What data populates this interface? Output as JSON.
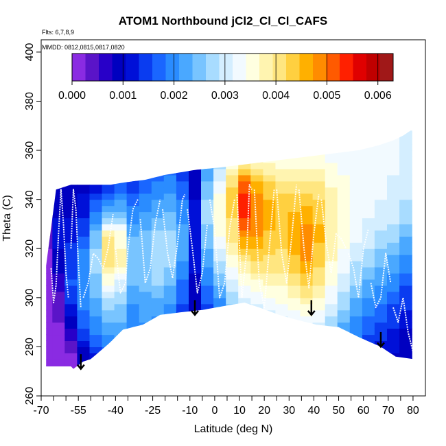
{
  "chart_data": {
    "type": "heatmap",
    "title": "ATOM1 Northbound jCl2_Cl_Cl_CAFS",
    "flights_note": "Flts: 6,7,8,9",
    "dates_note": "MMDD: 0812,0815,0817,0820",
    "xlabel": "Latitude (deg N)",
    "ylabel": "Theta (C)",
    "xlim": [
      -70,
      85
    ],
    "ylim": [
      260,
      405
    ],
    "x_ticks": [
      -70,
      -55,
      -40,
      -25,
      -10,
      0,
      10,
      20,
      30,
      40,
      50,
      60,
      70,
      80
    ],
    "x_tick_labels": [
      "-70",
      "-55",
      "-40",
      "-25",
      "-10",
      "0",
      "10",
      "20",
      "30",
      "40",
      "50",
      "60",
      "70",
      "80"
    ],
    "x_minor_ticks": [
      -65,
      -60,
      -50,
      -45,
      -35,
      -30,
      -20,
      -15,
      -5,
      5,
      15,
      25,
      35,
      45,
      55,
      65,
      75
    ],
    "y_ticks": [
      260,
      280,
      300,
      320,
      340,
      360,
      380,
      400
    ],
    "y_tick_labels": [
      "260",
      "280",
      "300",
      "320",
      "340",
      "360",
      "380",
      "400"
    ],
    "colorbar": {
      "min": 0.0,
      "max": 0.0063,
      "ticks": [
        0.0,
        0.001,
        0.002,
        0.003,
        0.004,
        0.005,
        0.006
      ],
      "tick_labels": [
        "0.000",
        "0.001",
        "0.002",
        "0.003",
        "0.004",
        "0.005",
        "0.006"
      ],
      "colors": [
        "#8a2be2",
        "#5a14c8",
        "#2800c8",
        "#0000c0",
        "#0010d8",
        "#0a3cf0",
        "#1a66ff",
        "#2a8cff",
        "#4aa8ff",
        "#78c4ff",
        "#a8dcff",
        "#d4eeff",
        "#f2faff",
        "#ffffe0",
        "#fff4b0",
        "#ffe680",
        "#ffd040",
        "#ffb000",
        "#ff8c00",
        "#ff5a00",
        "#ff2000",
        "#e00000",
        "#c00000",
        "#a01818"
      ]
    },
    "floor_boundary": {
      "lat": [
        -57,
        -53,
        -50,
        -43,
        -37,
        -29,
        -22,
        -14,
        -5,
        6,
        12,
        18,
        26,
        33,
        41,
        50,
        58,
        67,
        73,
        80
      ],
      "theta": [
        271,
        274,
        275,
        281,
        287,
        289,
        293,
        294,
        295,
        297,
        298,
        296,
        293,
        291,
        289,
        288,
        284,
        280,
        276,
        275
      ]
    },
    "top_boundary": {
      "lat": [
        -68,
        -64,
        -58,
        -50,
        -42,
        -36,
        -28,
        -20,
        -14,
        -8,
        2,
        10,
        18,
        26,
        34,
        42,
        50,
        58,
        66,
        72,
        76,
        79
      ],
      "theta": [
        313,
        344,
        346,
        346,
        346,
        347,
        348,
        350,
        351,
        352,
        353,
        354,
        355,
        356,
        357,
        358,
        359,
        360,
        362,
        364,
        366,
        368
      ]
    },
    "columns": [
      {
        "lat": -68,
        "values": [
          0.0001,
          0.0001,
          0.0001,
          0.0002,
          0.0002,
          0.0003,
          0.0004,
          0.0002,
          0.0001,
          0.0001
        ]
      },
      {
        "lat": -63,
        "values": [
          0.0001,
          0.0002,
          0.0003,
          0.0006,
          0.0009,
          0.0012,
          0.001,
          0.0008,
          0.0005,
          0.0003
        ]
      },
      {
        "lat": -58,
        "values": [
          0.0002,
          0.0006,
          0.0012,
          0.0016,
          0.0015,
          0.0012,
          0.001,
          0.0009,
          0.0007,
          0.0005
        ]
      },
      {
        "lat": -53,
        "values": [
          0.0008,
          0.0014,
          0.0019,
          0.0021,
          0.002,
          0.0016,
          0.0012,
          0.001,
          0.0008,
          0.0007
        ]
      },
      {
        "lat": -48,
        "values": [
          0.0012,
          0.0018,
          0.0022,
          0.0025,
          0.0028,
          0.0025,
          0.0018,
          0.0012,
          0.0009,
          0.0008
        ]
      },
      {
        "lat": -43,
        "values": [
          0.0016,
          0.0021,
          0.0026,
          0.0033,
          0.0042,
          0.004,
          0.0022,
          0.0014,
          0.001,
          0.0008
        ]
      },
      {
        "lat": -38,
        "values": [
          0.0018,
          0.0022,
          0.0025,
          0.003,
          0.0038,
          0.0036,
          0.0024,
          0.0017,
          0.0012,
          0.0009
        ]
      },
      {
        "lat": -33,
        "values": [
          0.0016,
          0.0018,
          0.002,
          0.0024,
          0.0026,
          0.0024,
          0.0019,
          0.0015,
          0.0012,
          0.001
        ]
      },
      {
        "lat": -28,
        "values": [
          0.0017,
          0.002,
          0.0022,
          0.0024,
          0.0026,
          0.0025,
          0.0021,
          0.0017,
          0.0014,
          0.0011
        ]
      },
      {
        "lat": -23,
        "values": [
          0.0016,
          0.0019,
          0.0022,
          0.0026,
          0.0028,
          0.0027,
          0.0023,
          0.0019,
          0.0016,
          0.0013
        ]
      },
      {
        "lat": -18,
        "values": [
          0.0014,
          0.0017,
          0.002,
          0.0024,
          0.0027,
          0.0027,
          0.0024,
          0.002,
          0.0017,
          0.0014
        ]
      },
      {
        "lat": -13,
        "values": [
          0.001,
          0.0012,
          0.0015,
          0.0018,
          0.0021,
          0.0022,
          0.002,
          0.0016,
          0.0014,
          0.0012
        ]
      },
      {
        "lat": -8,
        "values": [
          0.0006,
          0.0008,
          0.0009,
          0.001,
          0.0011,
          0.0012,
          0.0011,
          0.001,
          0.0009,
          0.0008
        ]
      },
      {
        "lat": -3,
        "values": [
          0.001,
          0.0012,
          0.0015,
          0.0018,
          0.0022,
          0.0025,
          0.0027,
          0.0025,
          0.0021,
          0.0016
        ]
      },
      {
        "lat": 2,
        "values": [
          0.0012,
          0.0015,
          0.0019,
          0.0024,
          0.0029,
          0.0034,
          0.0036,
          0.0033,
          0.0028,
          0.0022
        ]
      },
      {
        "lat": 7,
        "values": [
          0.0015,
          0.0019,
          0.0024,
          0.003,
          0.0035,
          0.004,
          0.0043,
          0.0042,
          0.0036,
          0.0028
        ]
      },
      {
        "lat": 12,
        "values": [
          0.0018,
          0.0023,
          0.0028,
          0.0034,
          0.004,
          0.0048,
          0.0055,
          0.0052,
          0.004,
          0.003
        ]
      },
      {
        "lat": 17,
        "values": [
          0.002,
          0.0025,
          0.003,
          0.0036,
          0.0042,
          0.0047,
          0.005,
          0.0046,
          0.0038,
          0.003
        ]
      },
      {
        "lat": 22,
        "values": [
          0.0022,
          0.0027,
          0.0032,
          0.0037,
          0.0041,
          0.0044,
          0.0046,
          0.0043,
          0.0037,
          0.0031
        ]
      },
      {
        "lat": 27,
        "values": [
          0.0023,
          0.0028,
          0.0033,
          0.0037,
          0.0041,
          0.0043,
          0.0044,
          0.0041,
          0.0036,
          0.0031
        ]
      },
      {
        "lat": 32,
        "values": [
          0.0024,
          0.0029,
          0.0034,
          0.0039,
          0.0044,
          0.0046,
          0.0045,
          0.0041,
          0.0036,
          0.0031
        ]
      },
      {
        "lat": 37,
        "values": [
          0.0025,
          0.003,
          0.0036,
          0.0042,
          0.0047,
          0.0049,
          0.0046,
          0.0041,
          0.0036,
          0.0032
        ]
      },
      {
        "lat": 42,
        "values": [
          0.0024,
          0.0029,
          0.0034,
          0.0039,
          0.0043,
          0.0045,
          0.0044,
          0.004,
          0.0036,
          0.0032
        ]
      },
      {
        "lat": 47,
        "values": [
          0.0022,
          0.0026,
          0.003,
          0.0034,
          0.0037,
          0.0039,
          0.0039,
          0.0037,
          0.0034,
          0.0031
        ]
      },
      {
        "lat": 52,
        "values": [
          0.0019,
          0.0022,
          0.0026,
          0.003,
          0.0033,
          0.0035,
          0.0036,
          0.0035,
          0.0033,
          0.0031
        ]
      },
      {
        "lat": 57,
        "values": [
          0.0016,
          0.0019,
          0.0022,
          0.0026,
          0.0029,
          0.0032,
          0.0034,
          0.0034,
          0.0033,
          0.0031
        ]
      },
      {
        "lat": 62,
        "values": [
          0.0013,
          0.0016,
          0.0019,
          0.0023,
          0.0027,
          0.003,
          0.0032,
          0.0033,
          0.0033,
          0.0032
        ]
      },
      {
        "lat": 67,
        "values": [
          0.0011,
          0.0014,
          0.0017,
          0.0021,
          0.0025,
          0.0028,
          0.0031,
          0.0032,
          0.0033,
          0.0033
        ]
      },
      {
        "lat": 72,
        "values": [
          0.001,
          0.0012,
          0.0015,
          0.0019,
          0.0023,
          0.0027,
          0.003,
          0.0031,
          0.0032,
          0.0032
        ]
      },
      {
        "lat": 77,
        "values": [
          0.0008,
          0.001,
          0.0013,
          0.0016,
          0.002,
          0.0024,
          0.0028,
          0.003,
          0.0031,
          0.0031
        ]
      }
    ],
    "flight_tracks": [
      {
        "lat": [
          -66,
          -65,
          -64,
          -63,
          -62,
          -61,
          -60,
          -59
        ],
        "theta": [
          312,
          298,
          305,
          326,
          344,
          330,
          310,
          300
        ]
      },
      {
        "lat": [
          -58,
          -57,
          -56,
          -55,
          -54
        ],
        "theta": [
          320,
          344,
          336,
          314,
          296
        ]
      },
      {
        "lat": [
          -53,
          -51,
          -49,
          -47,
          -45,
          -43,
          -41
        ],
        "theta": [
          300,
          306,
          318,
          316,
          312,
          320,
          334
        ]
      },
      {
        "lat": [
          -40,
          -38,
          -36,
          -35,
          -33,
          -31
        ],
        "theta": [
          320,
          302,
          306,
          320,
          336,
          340
        ]
      },
      {
        "lat": [
          -30,
          -28,
          -26,
          -24,
          -22
        ],
        "theta": [
          332,
          306,
          312,
          330,
          340
        ]
      },
      {
        "lat": [
          -21,
          -19,
          -17,
          -15,
          -13,
          -12
        ],
        "theta": [
          336,
          318,
          308,
          322,
          340,
          342
        ]
      },
      {
        "lat": [
          -11,
          -9,
          -7,
          -5,
          -3
        ],
        "theta": [
          336,
          320,
          302,
          310,
          330
        ]
      },
      {
        "lat": [
          -2,
          0,
          2,
          4,
          6,
          8
        ],
        "theta": [
          340,
          328,
          300,
          306,
          328,
          340
        ]
      },
      {
        "lat": [
          9,
          11,
          13,
          14,
          15
        ],
        "theta": [
          342,
          300,
          320,
          346,
          344
        ]
      },
      {
        "lat": [
          16,
          18,
          20,
          22,
          24
        ],
        "theta": [
          344,
          306,
          296,
          320,
          344
        ]
      },
      {
        "lat": [
          25,
          27,
          29,
          31,
          33
        ],
        "theta": [
          344,
          318,
          306,
          324,
          346
        ]
      },
      {
        "lat": [
          34,
          36,
          38,
          40,
          42
        ],
        "theta": [
          344,
          320,
          304,
          326,
          342
        ]
      },
      {
        "lat": [
          43,
          45,
          47,
          49,
          51,
          53
        ],
        "theta": [
          340,
          322,
          310,
          326,
          324,
          320
        ]
      },
      {
        "lat": [
          54,
          56,
          58,
          60,
          62
        ],
        "theta": [
          318,
          312,
          300,
          320,
          328
        ]
      },
      {
        "lat": [
          63,
          65,
          67,
          69,
          71
        ],
        "theta": [
          306,
          296,
          300,
          318,
          306
        ]
      },
      {
        "lat": [
          72,
          74,
          76,
          78,
          80
        ],
        "theta": [
          296,
          290,
          300,
          286,
          278
        ]
      }
    ],
    "arrows": [
      {
        "lat": -54,
        "theta_top": 277,
        "theta_bottom": 271
      },
      {
        "lat": -8,
        "theta_top": 299,
        "theta_bottom": 293
      },
      {
        "lat": 39,
        "theta_top": 299,
        "theta_bottom": 293
      },
      {
        "lat": 67,
        "theta_top": 286,
        "theta_bottom": 280
      }
    ]
  }
}
